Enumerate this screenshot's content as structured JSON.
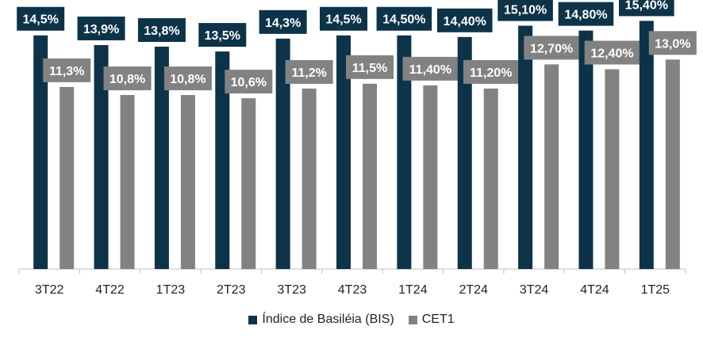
{
  "chart_data": {
    "type": "bar",
    "categories": [
      "3T22",
      "4T22",
      "1T23",
      "2T23",
      "3T23",
      "4T23",
      "1T24",
      "2T24",
      "3T24",
      "4T24",
      "1T25"
    ],
    "ylim": [
      0,
      16.5
    ],
    "grid": false,
    "legend_position": "bottom",
    "series": [
      {
        "name": "Índice de Basiléia (BIS)",
        "color": "#0d3349",
        "values": [
          14.5,
          13.9,
          13.8,
          13.5,
          14.3,
          14.5,
          14.5,
          14.4,
          15.1,
          14.8,
          15.4
        ],
        "labels": [
          "14,5%",
          "13,9%",
          "13,8%",
          "13,5%",
          "14,3%",
          "14,5%",
          "14,50%",
          "14,40%",
          "15,10%",
          "14,80%",
          "15,40%"
        ]
      },
      {
        "name": "CET1",
        "color": "#828282",
        "values": [
          11.3,
          10.8,
          10.8,
          10.6,
          11.2,
          11.5,
          11.4,
          11.2,
          12.7,
          12.4,
          13.0
        ],
        "labels": [
          "11,3%",
          "10,8%",
          "10,8%",
          "10,6%",
          "11,2%",
          "11,5%",
          "11,40%",
          "11,20%",
          "12,70%",
          "12,40%",
          "13,0%"
        ]
      }
    ]
  }
}
